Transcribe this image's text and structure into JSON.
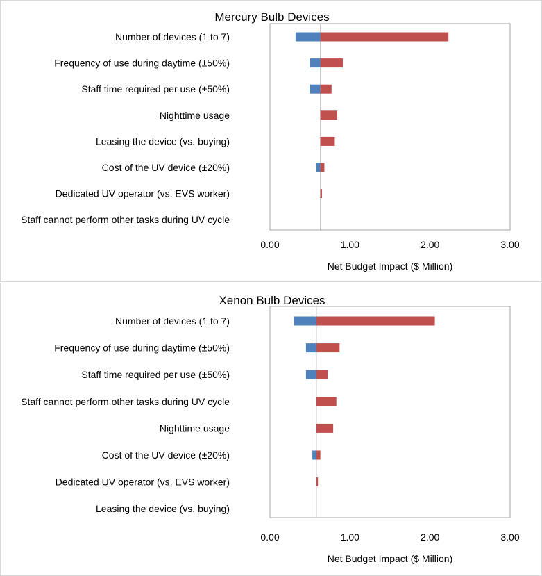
{
  "chart_data": [
    {
      "type": "bar",
      "orientation": "horizontal",
      "subtype": "tornado",
      "title": "Mercury Bulb Devices",
      "xlabel": "Net Budget Impact ($ Million)",
      "ylabel": "",
      "xlim": [
        0,
        3
      ],
      "xticks": [
        0,
        1,
        2,
        3
      ],
      "xtick_labels": [
        "0.00",
        "1.00",
        "2.00",
        "3.00"
      ],
      "baseline": 0.63,
      "grid": false,
      "categories": [
        "Number of devices (1 to 7)",
        "Frequency of use during daytime (±50%)",
        "Staff time required per use (±50%)",
        "Nighttime usage",
        "Leasing the device (vs. buying)",
        "Cost of the UV device (±20%)",
        "Dedicated UV operator (vs. EVS worker)",
        "Staff cannot perform other tasks during UV cycle"
      ],
      "series": [
        {
          "name": "Low",
          "color": "#4f81bd",
          "values": [
            0.32,
            0.5,
            0.5,
            0.63,
            0.63,
            0.58,
            0.63,
            0.63
          ]
        },
        {
          "name": "High",
          "color": "#c0504d",
          "values": [
            2.23,
            0.91,
            0.77,
            0.84,
            0.81,
            0.68,
            0.65,
            0.63
          ]
        }
      ]
    },
    {
      "type": "bar",
      "orientation": "horizontal",
      "subtype": "tornado",
      "title": "Xenon Bulb Devices",
      "xlabel": "Net Budget Impact ($ Million)",
      "ylabel": "",
      "xlim": [
        0,
        3
      ],
      "xticks": [
        0,
        1,
        2,
        3
      ],
      "xtick_labels": [
        "0.00",
        "1.00",
        "2.00",
        "3.00"
      ],
      "baseline": 0.58,
      "grid": false,
      "categories": [
        "Number of devices (1 to 7)",
        "Frequency of use during daytime (±50%)",
        "Staff time required per use (±50%)",
        "Staff cannot perform other tasks during UV cycle",
        "Nighttime usage",
        "Cost of the UV device (±20%)",
        "Dedicated UV operator (vs. EVS worker)",
        "Leasing the device (vs. buying)"
      ],
      "series": [
        {
          "name": "Low",
          "color": "#4f81bd",
          "values": [
            0.3,
            0.45,
            0.45,
            0.58,
            0.58,
            0.53,
            0.58,
            0.58
          ]
        },
        {
          "name": "High",
          "color": "#c0504d",
          "values": [
            2.06,
            0.87,
            0.72,
            0.83,
            0.79,
            0.63,
            0.6,
            0.58
          ]
        }
      ]
    }
  ]
}
